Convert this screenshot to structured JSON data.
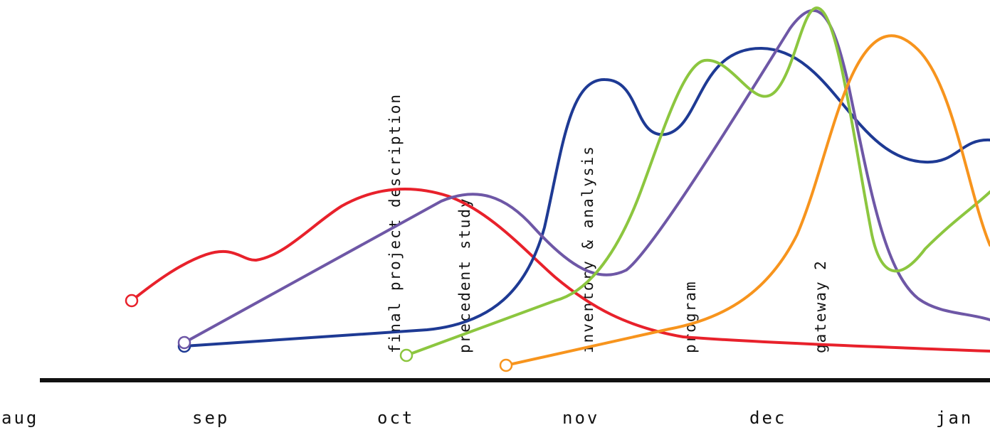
{
  "months": [
    "aug",
    "sep",
    "oct",
    "nov",
    "dec",
    "jan"
  ],
  "milestones": [
    {
      "id": "final-project-description",
      "label": "final project description"
    },
    {
      "id": "precedent-study",
      "label": "precedent study"
    },
    {
      "id": "inventory-analysis",
      "label": "inventory & analysis"
    },
    {
      "id": "program",
      "label": "program"
    },
    {
      "id": "gateway-2",
      "label": "gateway 2"
    }
  ],
  "colors": {
    "red": "#e8212b",
    "blue": "#1e3a94",
    "purple": "#6e57a6",
    "green": "#8cc63f",
    "orange": "#f7941d",
    "axis": "#111111"
  }
}
